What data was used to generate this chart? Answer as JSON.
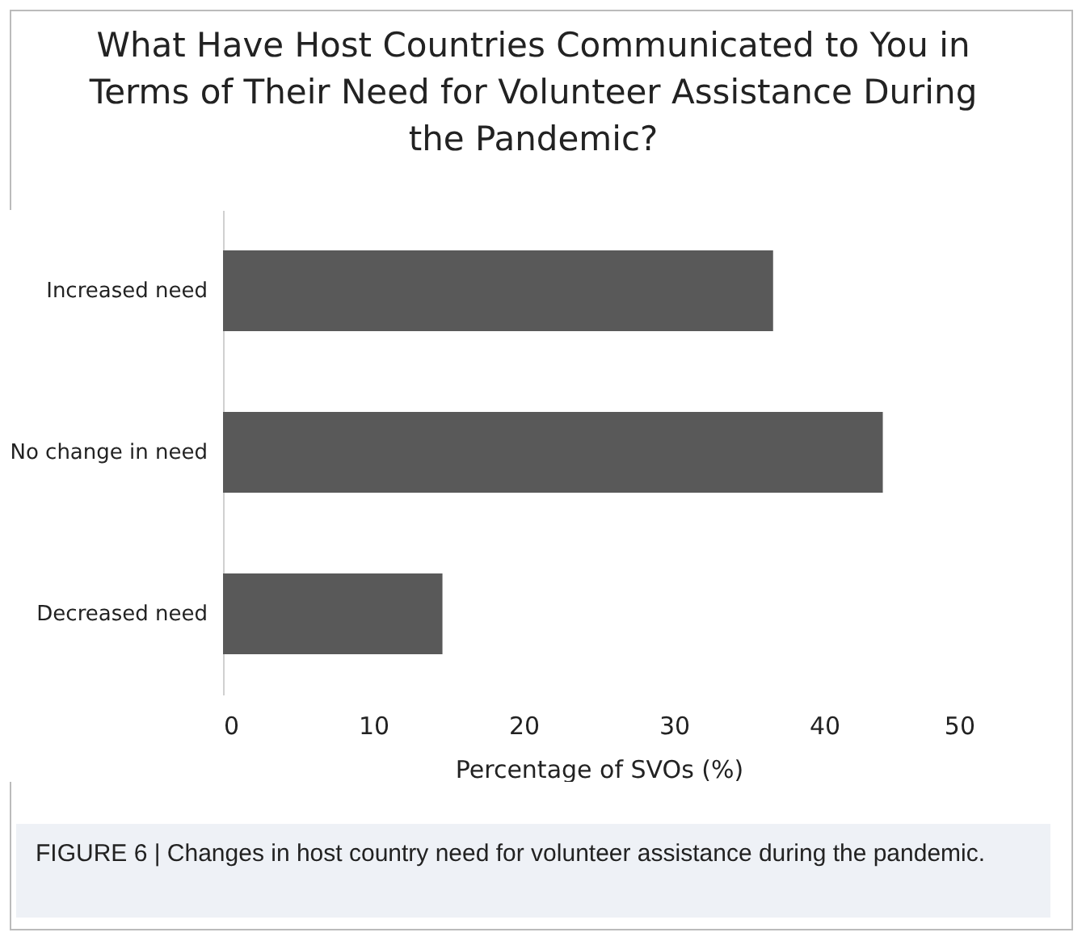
{
  "chart_data": {
    "type": "bar",
    "orientation": "horizontal",
    "title": "What Have Host Countries Communicated to You in Terms of Their Need for Volunteer Assistance During the Pandemic?",
    "xlabel": "Percentage of SVOs (%)",
    "categories": [
      "Increased need",
      "No change in need",
      "Decreased need"
    ],
    "values": [
      36.6,
      43.9,
      14.6
    ],
    "color": "#595959",
    "xlim": [
      0,
      50
    ],
    "xticks": [
      0,
      10,
      20,
      30,
      40,
      50
    ],
    "grid": false,
    "annotations": [
      "FIGURE 6 | Changes in host country need for volunteer assistance during the pandemic."
    ]
  }
}
